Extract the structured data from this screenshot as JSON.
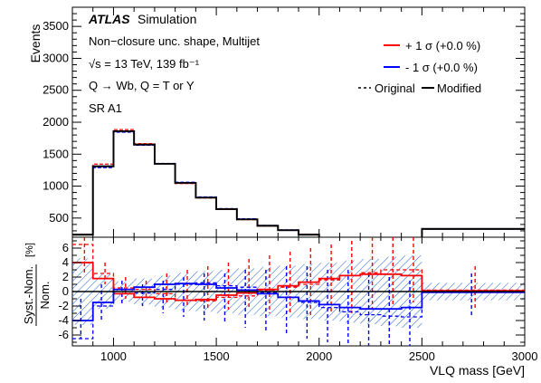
{
  "chart_data": {
    "type": "line",
    "x_edges": [
      800,
      900,
      1000,
      1100,
      1200,
      1300,
      1400,
      1500,
      1600,
      1700,
      1800,
      1900,
      2000,
      2100,
      2200,
      2300,
      2400,
      2500,
      3000
    ],
    "top": {
      "ylabel": "Events",
      "ylim": [
        200,
        3800
      ],
      "yticks": [
        500,
        1000,
        1500,
        2000,
        2500,
        3000,
        3500
      ],
      "legend_position": "top-right",
      "annotations": {
        "brand": "ATLAS",
        "brand_suffix": "Simulation",
        "line1": "Non−closure unc. shape, Multijet",
        "line2": "√s = 13 TeV, 139 fb⁻¹",
        "line3": "Q → Wb, Q = T or Y",
        "line4": "SR A1"
      },
      "legend": {
        "up": "+ 1 σ (+0.0 %)",
        "down": "- 1 σ (+0.0 %)",
        "original": "Original",
        "modified": "Modified"
      },
      "series": [
        {
          "role": "nominal",
          "values": [
            240,
            1310,
            1860,
            1650,
            1350,
            1050,
            820,
            640,
            480,
            380,
            310,
            240,
            175,
            150,
            110,
            90,
            65,
            330
          ]
        },
        {
          "role": "up",
          "values": [
            240,
            1345,
            1885,
            1665,
            1350,
            1040,
            815,
            635,
            475,
            375,
            310,
            245,
            180,
            155,
            115,
            93,
            68,
            332
          ]
        },
        {
          "role": "down",
          "values": [
            240,
            1290,
            1845,
            1640,
            1355,
            1060,
            830,
            648,
            488,
            384,
            314,
            238,
            172,
            147,
            107,
            88,
            62,
            328
          ]
        }
      ]
    },
    "bottom": {
      "ylabel_num": "Syst.-Nom.",
      "ylabel_den": "Nom.",
      "ylabel_unit": "[%]",
      "xlabel": "VLQ mass [GeV]",
      "ylim": [
        -7.5,
        7.5
      ],
      "yticks": [
        -6,
        -4,
        -2,
        0,
        2,
        4,
        6
      ],
      "xticks": [
        1000,
        1500,
        2000,
        2500,
        3000
      ],
      "original_up": [
        6.5,
        2.5,
        0.5,
        0.3,
        -0.3,
        -1.2,
        -1.3,
        -0.8,
        -0.6,
        0.2,
        0.6,
        1.0,
        1.6,
        2.2,
        2.6,
        3.0,
        3.0,
        0.2
      ],
      "original_down": [
        -6.5,
        -2.0,
        -0.3,
        -0.2,
        0.3,
        1.0,
        1.2,
        0.8,
        0.6,
        -0.1,
        -0.8,
        -1.5,
        -2.2,
        -2.8,
        -3.2,
        -3.4,
        -3.5,
        -0.1
      ],
      "modified_up": [
        4.0,
        1.8,
        -0.3,
        -0.8,
        -1.0,
        -1.2,
        -1.1,
        -0.5,
        -0.2,
        0.3,
        0.8,
        1.3,
        1.8,
        2.2,
        2.4,
        2.4,
        2.2,
        0.1
      ],
      "modified_down": [
        -4.0,
        -1.5,
        0.3,
        0.6,
        1.0,
        1.1,
        1.0,
        0.5,
        0.2,
        -0.3,
        -0.8,
        -1.3,
        -1.8,
        -2.2,
        -2.4,
        -2.4,
        -2.2,
        -0.1
      ],
      "hatch_up": [
        4.6,
        2.4,
        1.4,
        1.8,
        2.2,
        2.6,
        2.8,
        3.0,
        3.2,
        3.4,
        3.6,
        3.8,
        4.0,
        4.3,
        4.5,
        4.8,
        5.0,
        1.2
      ],
      "hatch_down": [
        -4.6,
        -2.4,
        -1.4,
        -1.8,
        -2.2,
        -2.6,
        -2.8,
        -3.0,
        -3.2,
        -3.4,
        -3.6,
        -3.8,
        -4.0,
        -4.3,
        -4.5,
        -4.8,
        -5.0,
        -1.2
      ],
      "err_red_up": [
        [
          7.5,
          2.5
        ],
        [
          4.0,
          1.0
        ],
        [
          2.0,
          -1.0
        ],
        [
          1.5,
          -1.0
        ],
        [
          2.5,
          -1.5
        ],
        [
          3.0,
          -2.0
        ],
        [
          3.5,
          -2.5
        ],
        [
          4.0,
          -2.5
        ],
        [
          4.5,
          -2.5
        ],
        [
          5.0,
          -3.0
        ],
        [
          5.5,
          -3.0
        ],
        [
          6.0,
          -3.5
        ],
        [
          6.5,
          -3.0
        ],
        [
          7.0,
          -3.0
        ],
        [
          7.5,
          -2.5
        ],
        [
          7.5,
          -2.0
        ],
        [
          7.5,
          -1.5
        ],
        [
          3.5,
          -2.5
        ]
      ],
      "err_blue": [
        [
          -1.0,
          -6.5
        ],
        [
          1.0,
          -4.0
        ],
        [
          1.5,
          -2.0
        ],
        [
          1.0,
          -2.0
        ],
        [
          1.5,
          -3.0
        ],
        [
          2.0,
          -3.5
        ],
        [
          2.5,
          -4.0
        ],
        [
          2.5,
          -4.5
        ],
        [
          3.0,
          -5.0
        ],
        [
          3.0,
          -5.5
        ],
        [
          3.5,
          -6.0
        ],
        [
          3.5,
          -6.5
        ],
        [
          3.0,
          -7.0
        ],
        [
          3.0,
          -7.5
        ],
        [
          2.5,
          -7.5
        ],
        [
          2.0,
          -7.5
        ],
        [
          1.5,
          -7.5
        ],
        [
          2.5,
          -3.5
        ]
      ]
    },
    "colors": {
      "up": "#ff0000",
      "down": "#0000ff",
      "axis": "#000000"
    }
  }
}
